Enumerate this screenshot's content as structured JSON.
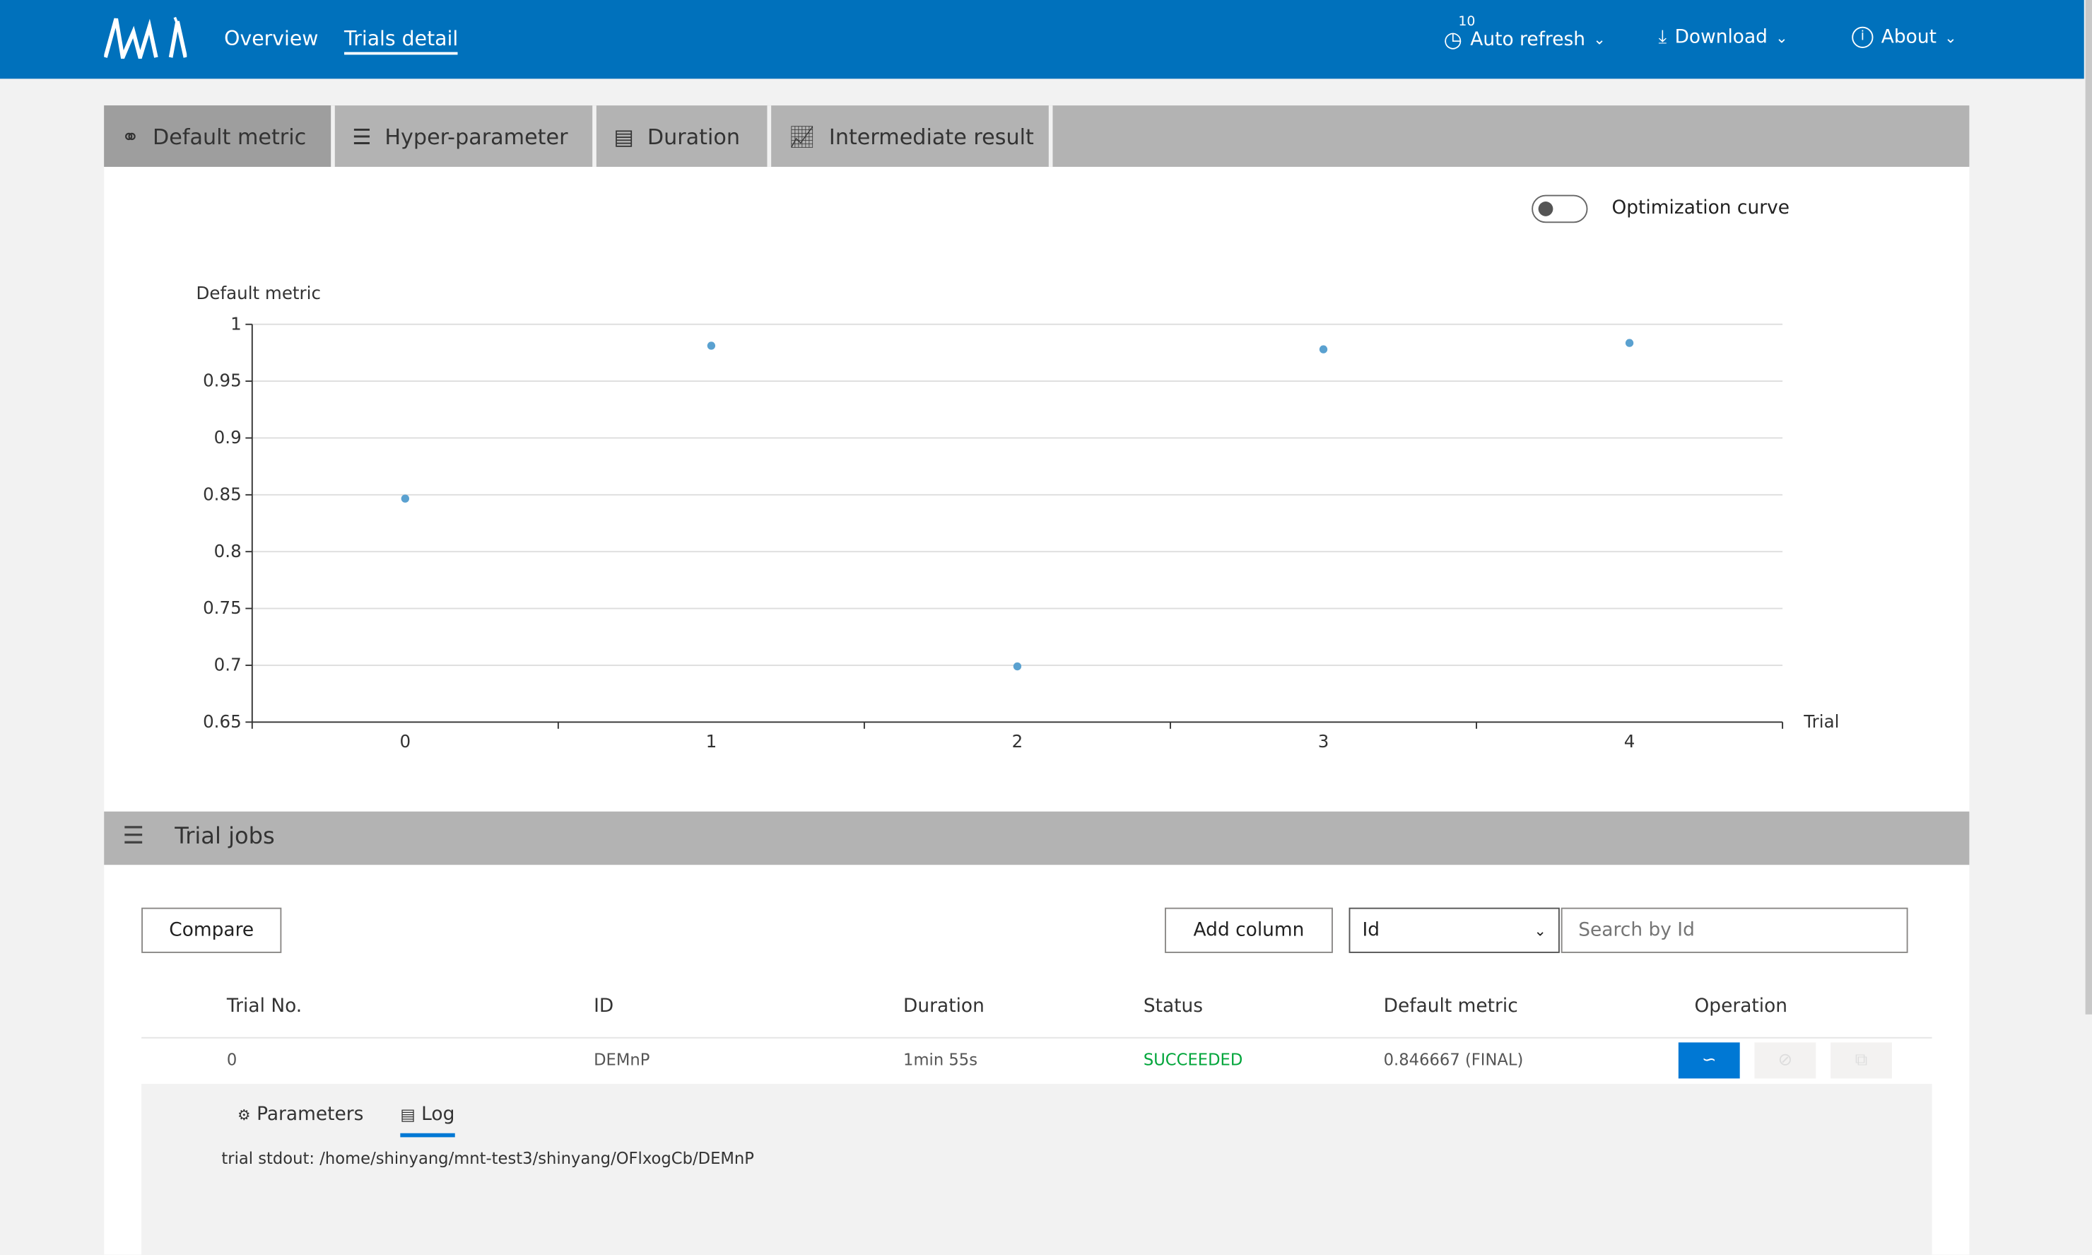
{
  "header": {
    "nav": [
      {
        "label": "Overview"
      },
      {
        "label": "Trials detail",
        "active": true
      }
    ],
    "auto_refresh": {
      "label": "Auto refresh",
      "interval": "10"
    },
    "download": {
      "label": "Download"
    },
    "about": {
      "label": "About"
    },
    "brand_color": "#0071bc"
  },
  "tabs": [
    {
      "label": "Default metric",
      "icon": "scatter-icon",
      "active": true
    },
    {
      "label": "Hyper-parameter",
      "icon": "sliders-icon"
    },
    {
      "label": "Duration",
      "icon": "bar-chart-icon"
    },
    {
      "label": "Intermediate result",
      "icon": "line-chart-icon"
    }
  ],
  "toggle": {
    "label": "Optimization curve",
    "on": false
  },
  "chart_data": {
    "type": "scatter",
    "ylabel": "Default metric",
    "xlabel": "Trial",
    "x": [
      0,
      1,
      2,
      3,
      4
    ],
    "y": [
      0.846667,
      0.9812,
      0.699,
      0.978,
      0.9836
    ],
    "xticks": [
      "0",
      "1",
      "2",
      "3",
      "4"
    ],
    "yticks": [
      "1",
      "0.95",
      "0.9",
      "0.85",
      "0.8",
      "0.75",
      "0.7",
      "0.65"
    ],
    "ylim": [
      0.65,
      1
    ],
    "grid": true,
    "color": "#5aa1d0"
  },
  "jobs": {
    "title": "Trial jobs",
    "compare_label": "Compare",
    "add_column_label": "Add column",
    "search_field": "Id",
    "search_placeholder": "Search by Id",
    "columns": [
      "Trial No.",
      "ID",
      "Duration",
      "Status",
      "Default metric",
      "Operation"
    ],
    "rows": [
      {
        "trial": "0",
        "id": "DEMnP",
        "duration": "1min 55s",
        "status": "SUCCEEDED",
        "metric": "0.846667 (FINAL)"
      }
    ],
    "status_color": "#00a53a",
    "detail": {
      "tabs": [
        "Parameters",
        "Log"
      ],
      "active_tab": "Log",
      "log_text": "trial stdout: /home/shinyang/mnt-test3/shinyang/OFlxogCb/DEMnP"
    }
  }
}
